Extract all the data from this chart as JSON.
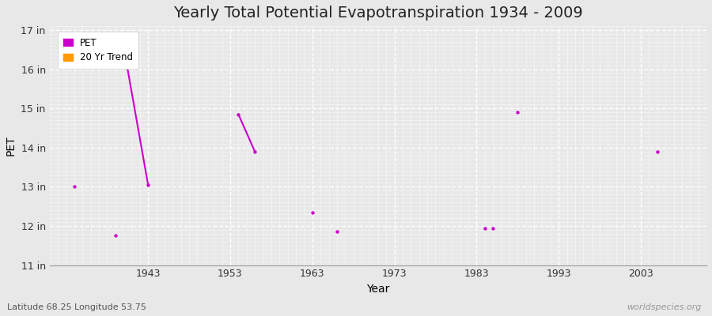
{
  "title": "Yearly Total Potential Evapotranspiration 1934 - 2009",
  "xlabel": "Year",
  "ylabel": "PET",
  "background_color": "#e8e8e8",
  "plot_bg_color": "#e8e8e8",
  "pet_color": "#cc00cc",
  "trend_color": "#ff9900",
  "xlim": [
    1931,
    2011
  ],
  "ylim": [
    11,
    17
  ],
  "ytick_labels": [
    "11 in",
    "12 in",
    "13 in",
    "14 in",
    "15 in",
    "16 in",
    "17 in"
  ],
  "ytick_values": [
    11,
    12,
    13,
    14,
    15,
    16,
    17
  ],
  "xtick_values": [
    1943,
    1953,
    1963,
    1973,
    1983,
    1993,
    2003
  ],
  "pet_data": [
    [
      1934,
      13.0
    ],
    [
      1939,
      11.75
    ],
    [
      1943,
      13.05
    ],
    [
      1940,
      16.6
    ],
    [
      1954,
      14.85
    ],
    [
      1956,
      13.9
    ],
    [
      1963,
      12.35
    ],
    [
      1966,
      11.85
    ],
    [
      1984,
      11.95
    ],
    [
      1988,
      14.9
    ],
    [
      1985,
      11.95
    ],
    [
      2005,
      13.9
    ]
  ],
  "trend_segments": [
    [
      [
        1940,
        16.6
      ],
      [
        1943,
        13.05
      ]
    ],
    [
      [
        1954,
        14.85
      ],
      [
        1956,
        13.9
      ]
    ]
  ],
  "watermark": "worldspecies.org",
  "footnote": "Latitude 68.25 Longitude 53.75",
  "title_fontsize": 14,
  "axis_label_fontsize": 10,
  "tick_fontsize": 9
}
